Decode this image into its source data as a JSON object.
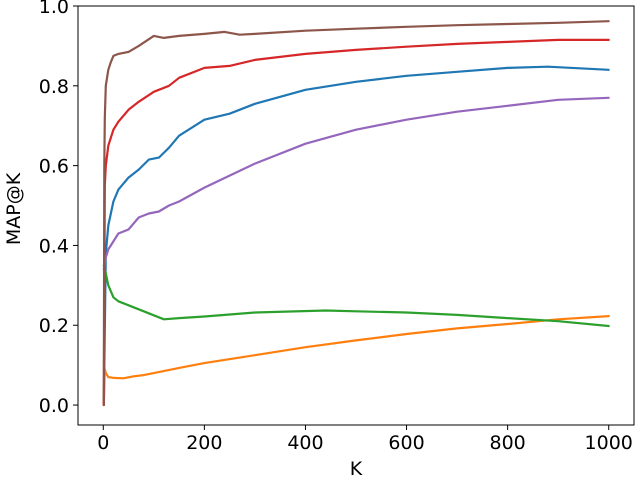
{
  "chart_data": {
    "type": "line",
    "title": "",
    "xlabel": "K",
    "ylabel": "MAP@K",
    "xlim": [
      -50,
      1050
    ],
    "ylim": [
      -0.05,
      1.0
    ],
    "xticks": [
      0,
      200,
      400,
      600,
      800,
      1000
    ],
    "yticks": [
      0.0,
      0.2,
      0.4,
      0.6,
      0.8,
      1.0
    ],
    "xtick_labels": [
      "0",
      "200",
      "400",
      "600",
      "800",
      "1000"
    ],
    "ytick_labels": [
      "0.0",
      "0.2",
      "0.4",
      "0.6",
      "0.8",
      "1.0"
    ],
    "grid": false,
    "legend": "none",
    "series": [
      {
        "color": "#1f77b4",
        "x": [
          1,
          5,
          10,
          20,
          30,
          50,
          70,
          90,
          110,
          130,
          150,
          200,
          250,
          300,
          400,
          500,
          600,
          700,
          800,
          880,
          1000
        ],
        "y": [
          0.0,
          0.38,
          0.45,
          0.51,
          0.54,
          0.57,
          0.59,
          0.615,
          0.62,
          0.645,
          0.675,
          0.715,
          0.73,
          0.755,
          0.79,
          0.81,
          0.825,
          0.835,
          0.845,
          0.848,
          0.84
        ]
      },
      {
        "color": "#ff7f0e",
        "x": [
          1,
          3,
          5,
          10,
          20,
          40,
          60,
          80,
          100,
          150,
          200,
          300,
          400,
          500,
          600,
          700,
          800,
          900,
          1000
        ],
        "y": [
          0.0,
          0.09,
          0.08,
          0.07,
          0.068,
          0.067,
          0.072,
          0.075,
          0.08,
          0.093,
          0.105,
          0.125,
          0.145,
          0.162,
          0.178,
          0.192,
          0.203,
          0.215,
          0.223
        ]
      },
      {
        "color": "#2ca02c",
        "x": [
          1,
          5,
          10,
          20,
          30,
          50,
          70,
          100,
          120,
          150,
          200,
          300,
          440,
          500,
          600,
          700,
          800,
          900,
          1000
        ],
        "y": [
          0.35,
          0.33,
          0.3,
          0.27,
          0.26,
          0.25,
          0.24,
          0.225,
          0.215,
          0.218,
          0.222,
          0.232,
          0.237,
          0.235,
          0.232,
          0.226,
          0.218,
          0.21,
          0.198
        ]
      },
      {
        "color": "#d62728",
        "x": [
          1,
          3,
          5,
          10,
          20,
          30,
          50,
          70,
          100,
          130,
          150,
          200,
          250,
          300,
          400,
          500,
          600,
          700,
          800,
          900,
          1000
        ],
        "y": [
          0.0,
          0.55,
          0.6,
          0.65,
          0.69,
          0.71,
          0.74,
          0.76,
          0.785,
          0.8,
          0.82,
          0.845,
          0.85,
          0.865,
          0.88,
          0.89,
          0.898,
          0.905,
          0.91,
          0.915,
          0.915
        ]
      },
      {
        "color": "#9467bd",
        "x": [
          1,
          5,
          10,
          20,
          30,
          50,
          70,
          90,
          110,
          130,
          150,
          200,
          250,
          300,
          400,
          500,
          600,
          700,
          800,
          900,
          1000
        ],
        "y": [
          0.34,
          0.37,
          0.39,
          0.41,
          0.43,
          0.44,
          0.47,
          0.48,
          0.485,
          0.5,
          0.51,
          0.545,
          0.575,
          0.605,
          0.655,
          0.69,
          0.715,
          0.735,
          0.75,
          0.765,
          0.77
        ]
      },
      {
        "color": "#8c564b",
        "x": [
          1,
          2,
          3,
          5,
          10,
          15,
          20,
          30,
          50,
          70,
          100,
          120,
          150,
          200,
          240,
          270,
          300,
          400,
          500,
          600,
          700,
          800,
          900,
          1000
        ],
        "y": [
          0.0,
          0.6,
          0.72,
          0.8,
          0.84,
          0.86,
          0.875,
          0.88,
          0.885,
          0.9,
          0.925,
          0.92,
          0.925,
          0.93,
          0.935,
          0.928,
          0.93,
          0.938,
          0.943,
          0.948,
          0.952,
          0.955,
          0.958,
          0.962
        ]
      }
    ]
  }
}
